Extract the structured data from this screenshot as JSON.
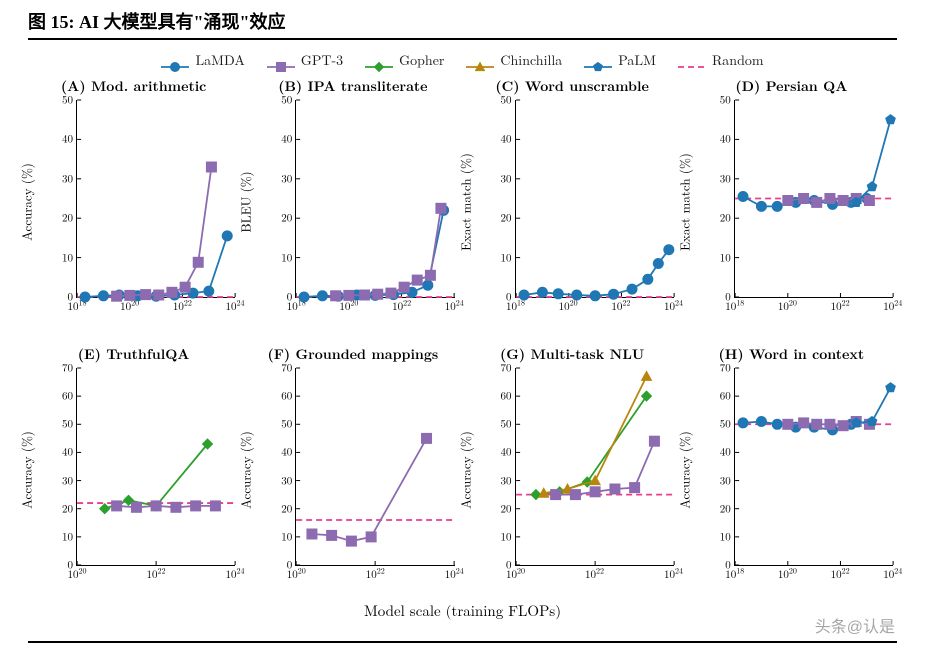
{
  "figure_title": "图 15:  AI 大模型具有\"涌现\"效应",
  "xlabel_global": "Model scale (training FLOPs)",
  "watermark": "头条@认是",
  "legend": [
    {
      "name": "LaMDA",
      "color": "#1f77b4",
      "marker": "circle",
      "dash": ""
    },
    {
      "name": "GPT-3",
      "color": "#8c6bb1",
      "marker": "square",
      "dash": ""
    },
    {
      "name": "Gopher",
      "color": "#2ca02c",
      "marker": "diamond",
      "dash": ""
    },
    {
      "name": "Chinchilla",
      "color": "#b8860b",
      "marker": "triangle",
      "dash": ""
    },
    {
      "name": "PaLM",
      "color": "#1f77b4",
      "marker": "pentagon",
      "dash": ""
    },
    {
      "name": "Random",
      "color": "#e83e8c",
      "marker": "none",
      "dash": "6,4"
    }
  ],
  "colors": {
    "LaMDA": "#1f77b4",
    "GPT-3": "#8c6bb1",
    "Gopher": "#2ca02c",
    "Chinchilla": "#b8860b",
    "PaLM": "#1f77b4",
    "Random": "#e83e8c"
  },
  "marker_size": 5,
  "line_width": 1.8,
  "axis_color": "#000000",
  "tick_fontsize": 11,
  "label_fontsize": 13,
  "panels": [
    {
      "id": "A",
      "title": "(A) Mod. arithmetic",
      "ylabel": "Accuracy (%)",
      "ylim": [
        0,
        50
      ],
      "ytick_step": 10,
      "xlog_range": [
        18,
        24
      ],
      "xtick_step": 2,
      "random": 0,
      "series": [
        {
          "model": "LaMDA",
          "points": [
            [
              18.3,
              0
            ],
            [
              19.0,
              0.3
            ],
            [
              19.6,
              0.5
            ],
            [
              20.3,
              0.3
            ],
            [
              21.0,
              0.2
            ],
            [
              21.7,
              0.5
            ],
            [
              22.4,
              1.0
            ],
            [
              23.0,
              1.5
            ],
            [
              23.7,
              15.5
            ]
          ]
        },
        {
          "model": "GPT-3",
          "points": [
            [
              19.5,
              0.2
            ],
            [
              20.0,
              0.4
            ],
            [
              20.6,
              0.6
            ],
            [
              21.1,
              0.5
            ],
            [
              21.6,
              1.2
            ],
            [
              22.1,
              2.5
            ],
            [
              22.6,
              8.8
            ],
            [
              23.1,
              33.0
            ]
          ]
        }
      ]
    },
    {
      "id": "B",
      "title": "(B) IPA transliterate",
      "ylabel": "BLEU (%)",
      "ylim": [
        0,
        50
      ],
      "ytick_step": 10,
      "xlog_range": [
        18,
        24
      ],
      "xtick_step": 2,
      "random": 0,
      "series": [
        {
          "model": "LaMDA",
          "points": [
            [
              18.3,
              0
            ],
            [
              19.0,
              0.3
            ],
            [
              19.6,
              0.2
            ],
            [
              20.3,
              0.5
            ],
            [
              21.0,
              0.4
            ],
            [
              21.7,
              0.6
            ],
            [
              22.4,
              1.2
            ],
            [
              23.0,
              3.0
            ],
            [
              23.6,
              22.0
            ]
          ]
        },
        {
          "model": "GPT-3",
          "points": [
            [
              19.5,
              0.3
            ],
            [
              20.0,
              0.4
            ],
            [
              20.6,
              0.5
            ],
            [
              21.1,
              0.7
            ],
            [
              21.6,
              1.0
            ],
            [
              22.1,
              2.5
            ],
            [
              22.6,
              4.3
            ],
            [
              23.1,
              5.5
            ],
            [
              23.5,
              22.5
            ]
          ]
        }
      ]
    },
    {
      "id": "C",
      "title": "(C) Word unscramble",
      "ylabel": "Exact match (%)",
      "ylim": [
        0,
        50
      ],
      "ytick_step": 10,
      "xlog_range": [
        18,
        24
      ],
      "xtick_step": 2,
      "random": 0,
      "series": [
        {
          "model": "LaMDA",
          "points": [
            [
              18.3,
              0.5
            ],
            [
              19.0,
              1.2
            ],
            [
              19.6,
              0.8
            ],
            [
              20.3,
              0.5
            ],
            [
              21.0,
              0.3
            ],
            [
              21.7,
              0.7
            ],
            [
              22.4,
              2.0
            ],
            [
              23.0,
              4.5
            ],
            [
              23.4,
              8.5
            ],
            [
              23.8,
              12.0
            ]
          ]
        }
      ]
    },
    {
      "id": "D",
      "title": "(D) Persian QA",
      "ylabel": "Exact match (%)",
      "ylim": [
        0,
        50
      ],
      "ytick_step": 10,
      "xlog_range": [
        18,
        24
      ],
      "xtick_step": 2,
      "random": 25,
      "series": [
        {
          "model": "LaMDA",
          "points": [
            [
              18.3,
              25.5
            ],
            [
              19.0,
              23.0
            ],
            [
              19.6,
              23.0
            ],
            [
              20.3,
              24.0
            ],
            [
              21.0,
              24.5
            ],
            [
              21.7,
              23.5
            ],
            [
              22.4,
              24.0
            ],
            [
              23.0,
              25.0
            ]
          ]
        },
        {
          "model": "GPT-3",
          "points": [
            [
              20.0,
              24.5
            ],
            [
              20.6,
              25.0
            ],
            [
              21.1,
              24.0
            ],
            [
              21.6,
              25.0
            ],
            [
              22.1,
              24.5
            ],
            [
              22.6,
              25.0
            ],
            [
              23.1,
              24.5
            ]
          ]
        },
        {
          "model": "PaLM",
          "points": [
            [
              22.6,
              24.0
            ],
            [
              23.2,
              28.0
            ],
            [
              23.9,
              45.0
            ]
          ]
        }
      ]
    },
    {
      "id": "E",
      "title": "(E) TruthfulQA",
      "ylabel": "Accuracy (%)",
      "ylim": [
        0,
        70
      ],
      "ytick_step": 10,
      "xlog_range": [
        20,
        24
      ],
      "xtick_step": 2,
      "random": 22,
      "series": [
        {
          "model": "Gopher",
          "points": [
            [
              20.7,
              20.0
            ],
            [
              21.3,
              23.0
            ],
            [
              22.0,
              21.0
            ],
            [
              23.3,
              43.0
            ]
          ]
        },
        {
          "model": "GPT-3",
          "points": [
            [
              21.0,
              21.0
            ],
            [
              21.5,
              20.5
            ],
            [
              22.0,
              21.0
            ],
            [
              22.5,
              20.5
            ],
            [
              23.0,
              21.0
            ],
            [
              23.5,
              21.0
            ]
          ]
        }
      ]
    },
    {
      "id": "F",
      "title": "(F) Grounded mappings",
      "ylabel": "Accuracy (%)",
      "ylim": [
        0,
        70
      ],
      "ytick_step": 10,
      "xlog_range": [
        20,
        24
      ],
      "xtick_step": 2,
      "random": 16,
      "series": [
        {
          "model": "GPT-3",
          "points": [
            [
              20.4,
              11.0
            ],
            [
              20.9,
              10.5
            ],
            [
              21.4,
              8.5
            ],
            [
              21.9,
              10.0
            ],
            [
              23.3,
              45.0
            ]
          ]
        }
      ]
    },
    {
      "id": "G",
      "title": "(G) Multi-task NLU",
      "ylabel": "Accuracy (%)",
      "ylim": [
        0,
        70
      ],
      "ytick_step": 10,
      "xlog_range": [
        20,
        24
      ],
      "xtick_step": 2,
      "random": 25,
      "series": [
        {
          "model": "Gopher",
          "points": [
            [
              20.5,
              25.0
            ],
            [
              21.1,
              26.0
            ],
            [
              21.8,
              29.5
            ],
            [
              23.3,
              60.0
            ]
          ]
        },
        {
          "model": "Chinchilla",
          "points": [
            [
              20.7,
              25.5
            ],
            [
              21.3,
              27.0
            ],
            [
              22.0,
              30.0
            ],
            [
              23.3,
              67.0
            ]
          ]
        },
        {
          "model": "GPT-3",
          "points": [
            [
              21.0,
              25.0
            ],
            [
              21.5,
              25.0
            ],
            [
              22.0,
              26.0
            ],
            [
              22.5,
              27.0
            ],
            [
              23.0,
              27.5
            ],
            [
              23.5,
              44.0
            ]
          ]
        }
      ]
    },
    {
      "id": "H",
      "title": "(H) Word in context",
      "ylabel": "Accuracy (%)",
      "ylim": [
        0,
        70
      ],
      "ytick_step": 10,
      "xlog_range": [
        18,
        24
      ],
      "xtick_step": 2,
      "random": 50,
      "series": [
        {
          "model": "LaMDA",
          "points": [
            [
              18.3,
              50.5
            ],
            [
              19.0,
              51.0
            ],
            [
              19.6,
              50.0
            ],
            [
              20.3,
              49.0
            ],
            [
              21.0,
              49.0
            ],
            [
              21.7,
              48.0
            ],
            [
              22.4,
              50.0
            ]
          ]
        },
        {
          "model": "GPT-3",
          "points": [
            [
              20.0,
              50.0
            ],
            [
              20.6,
              50.5
            ],
            [
              21.1,
              50.0
            ],
            [
              21.6,
              50.0
            ],
            [
              22.1,
              49.5
            ],
            [
              22.6,
              51.0
            ],
            [
              23.1,
              50.0
            ]
          ]
        },
        {
          "model": "PaLM",
          "points": [
            [
              22.6,
              50.5
            ],
            [
              23.2,
              51.0
            ],
            [
              23.9,
              63.0
            ]
          ]
        }
      ]
    }
  ]
}
